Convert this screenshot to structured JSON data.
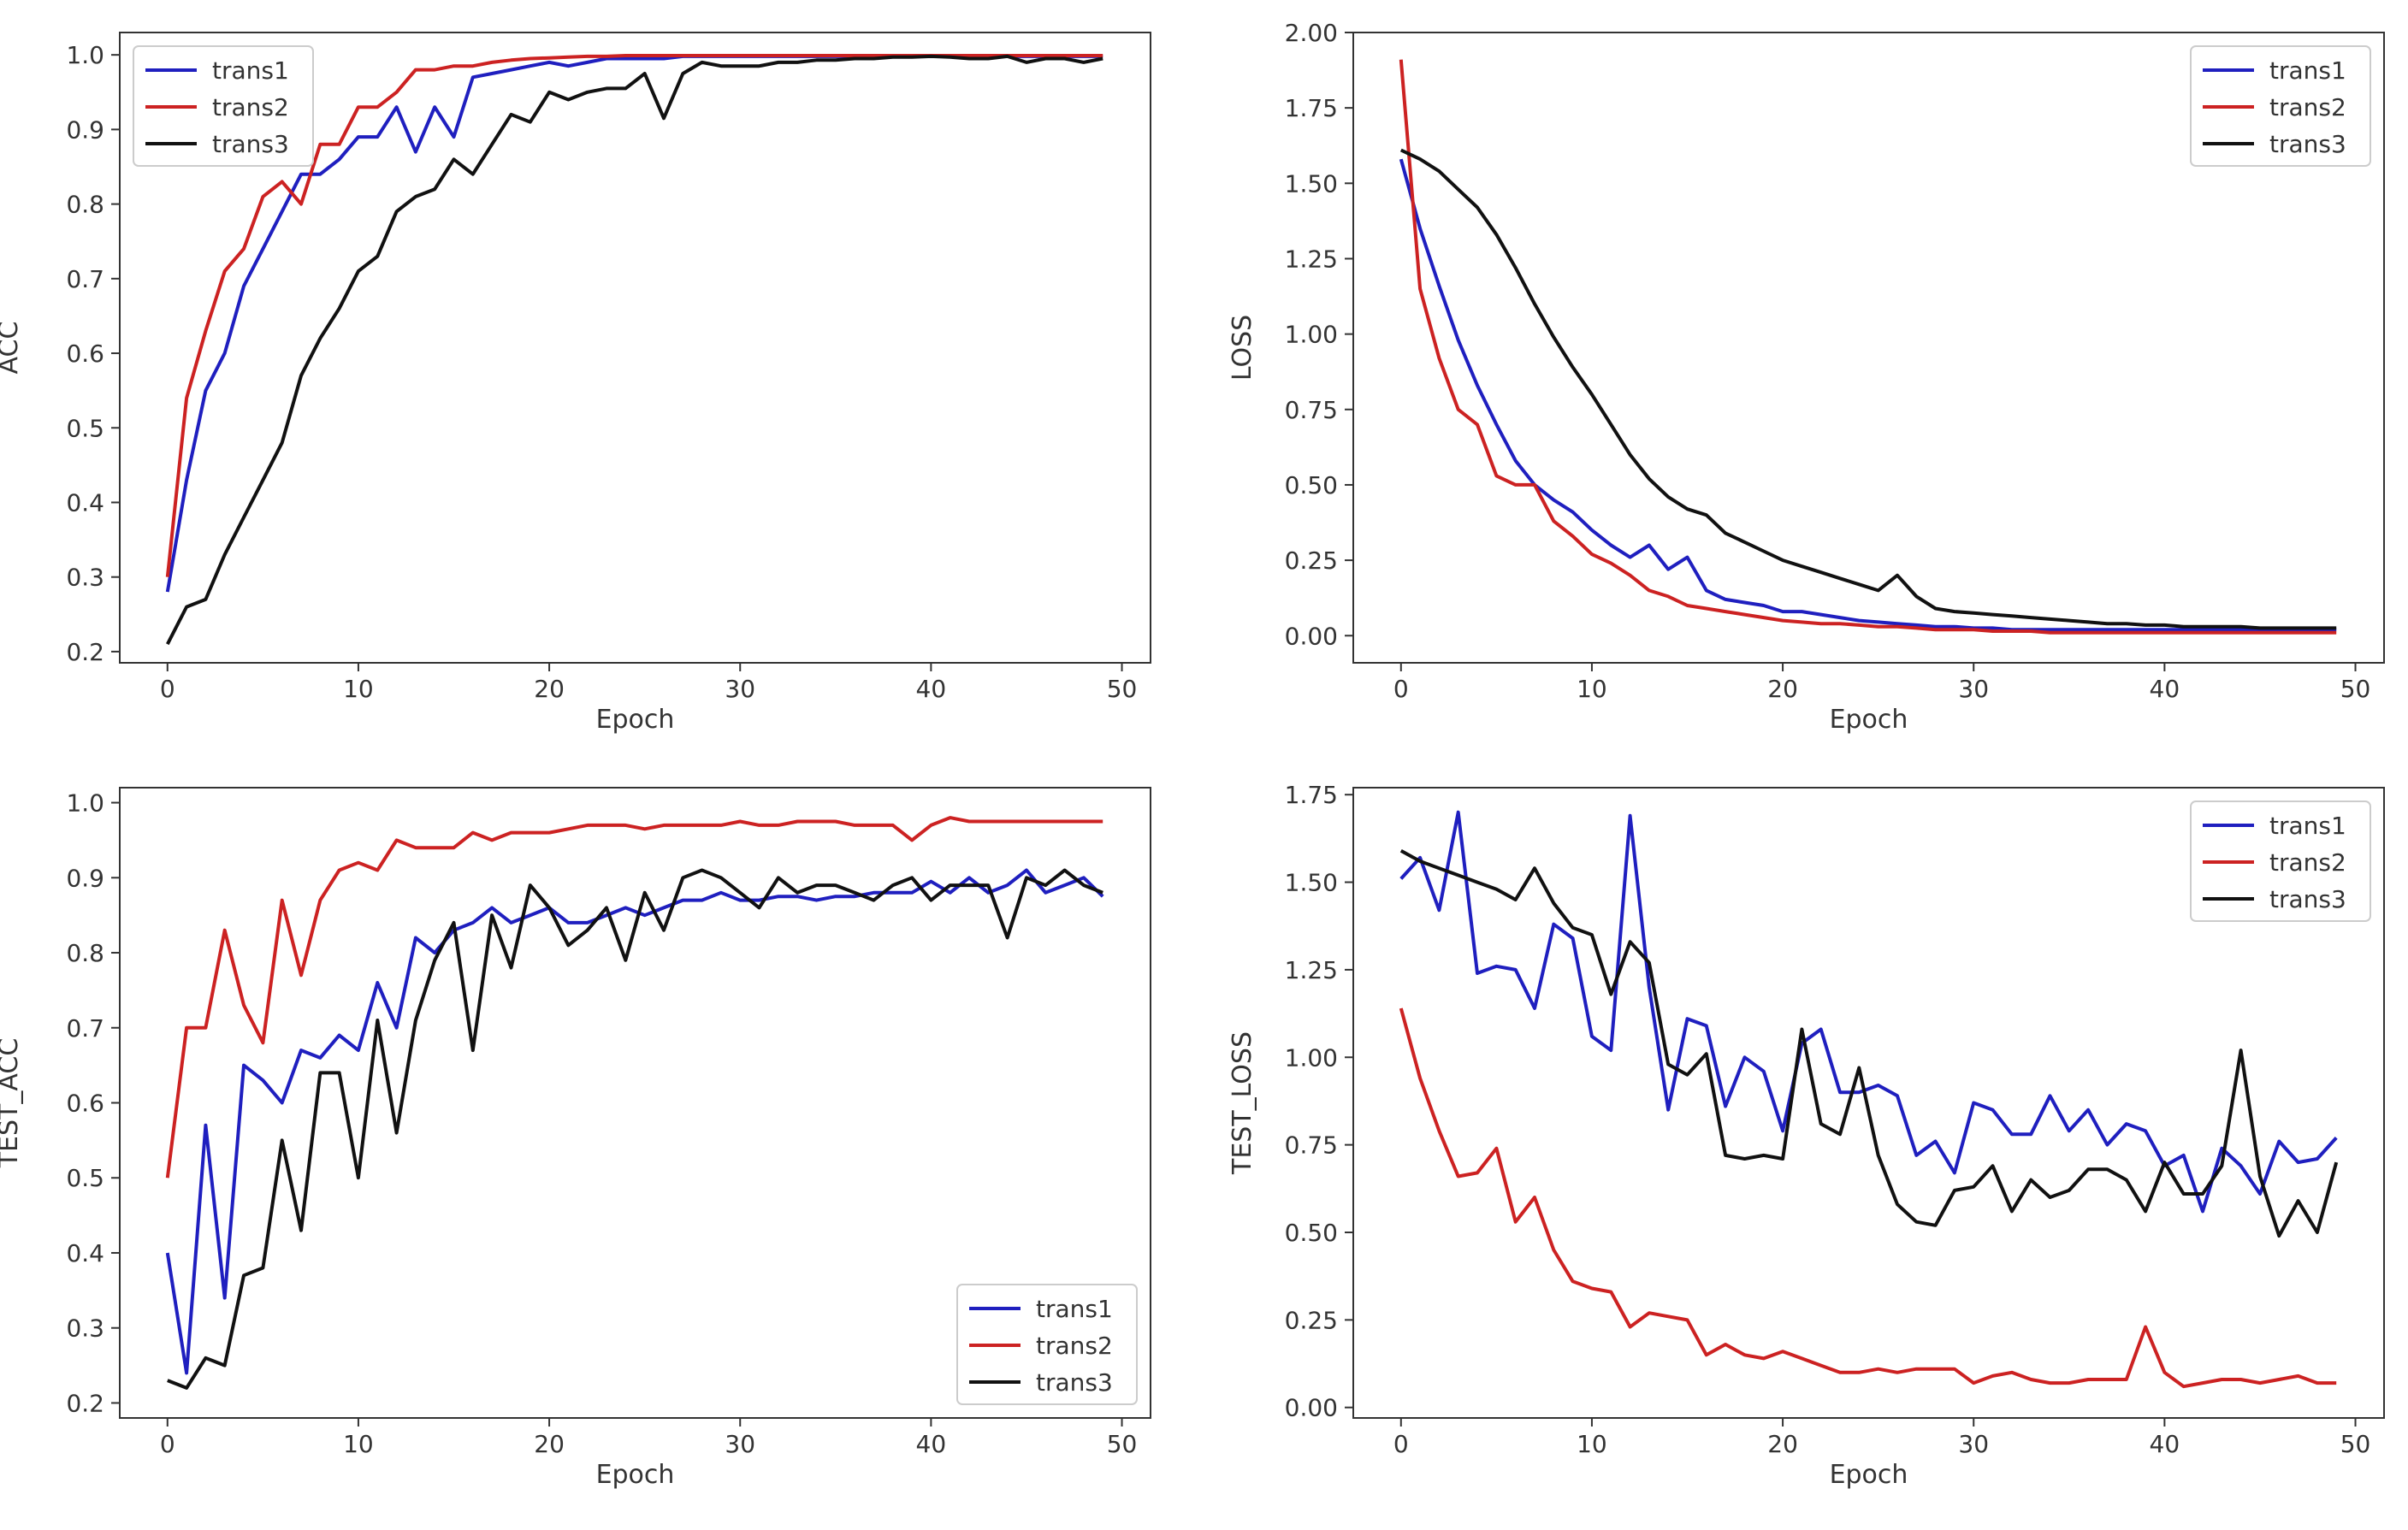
{
  "colors": {
    "trans1": "#1f1fbf",
    "trans2": "#cc2222",
    "trans3": "#111111"
  },
  "chart_data": [
    {
      "type": "line",
      "xlabel": "Epoch",
      "ylabel": "ACC",
      "xlim": [
        -2.5,
        51.5
      ],
      "ylim": [
        0.185,
        1.03
      ],
      "xticks": [
        "0",
        "10",
        "20",
        "30",
        "40",
        "50"
      ],
      "yticks": [
        "0.2",
        "0.3",
        "0.4",
        "0.5",
        "0.6",
        "0.7",
        "0.8",
        "0.9",
        "1.0"
      ],
      "legend_position": "top-left",
      "series": [
        {
          "name": "trans1",
          "values": [
            0.28,
            0.43,
            0.55,
            0.6,
            0.69,
            0.74,
            0.79,
            0.84,
            0.84,
            0.86,
            0.89,
            0.89,
            0.93,
            0.87,
            0.93,
            0.89,
            0.97,
            0.975,
            0.98,
            0.985,
            0.99,
            0.985,
            0.99,
            0.995,
            0.995,
            0.995,
            0.995,
            0.998,
            0.998,
            0.998,
            0.998,
            0.998,
            0.998,
            0.998,
            0.998,
            0.998,
            0.998,
            0.998,
            0.998,
            0.998,
            0.998,
            0.998,
            0.998,
            0.998,
            0.998,
            0.998,
            0.998,
            0.998,
            0.998,
            0.998
          ]
        },
        {
          "name": "trans2",
          "values": [
            0.3,
            0.54,
            0.63,
            0.71,
            0.74,
            0.81,
            0.83,
            0.8,
            0.88,
            0.88,
            0.93,
            0.93,
            0.95,
            0.98,
            0.98,
            0.985,
            0.985,
            0.99,
            0.993,
            0.995,
            0.996,
            0.997,
            0.998,
            0.998,
            0.999,
            0.999,
            0.999,
            0.999,
            0.999,
            0.999,
            0.999,
            0.999,
            0.999,
            0.999,
            0.999,
            0.999,
            0.999,
            0.999,
            0.999,
            0.999,
            0.999,
            0.999,
            0.999,
            0.999,
            0.999,
            0.999,
            0.999,
            0.999,
            0.999,
            0.999
          ]
        },
        {
          "name": "trans3",
          "values": [
            0.21,
            0.26,
            0.27,
            0.33,
            0.38,
            0.43,
            0.48,
            0.57,
            0.62,
            0.66,
            0.71,
            0.73,
            0.79,
            0.81,
            0.82,
            0.86,
            0.84,
            0.88,
            0.92,
            0.91,
            0.95,
            0.94,
            0.95,
            0.955,
            0.955,
            0.975,
            0.915,
            0.975,
            0.99,
            0.985,
            0.985,
            0.985,
            0.99,
            0.99,
            0.993,
            0.993,
            0.995,
            0.995,
            0.997,
            0.997,
            0.998,
            0.997,
            0.995,
            0.995,
            0.998,
            0.99,
            0.995,
            0.995,
            0.99,
            0.995
          ]
        }
      ]
    },
    {
      "type": "line",
      "xlabel": "Epoch",
      "ylabel": "LOSS",
      "xlim": [
        -2.5,
        51.5
      ],
      "ylim": [
        -0.09,
        2.0
      ],
      "xticks": [
        "0",
        "10",
        "20",
        "30",
        "40",
        "50"
      ],
      "yticks": [
        "0.00",
        "0.25",
        "0.50",
        "0.75",
        "1.00",
        "1.25",
        "1.50",
        "1.75",
        "2.00"
      ],
      "legend_position": "top-right",
      "series": [
        {
          "name": "trans1",
          "values": [
            1.58,
            1.35,
            1.16,
            0.98,
            0.83,
            0.7,
            0.58,
            0.5,
            0.45,
            0.41,
            0.35,
            0.3,
            0.26,
            0.3,
            0.22,
            0.26,
            0.15,
            0.12,
            0.11,
            0.1,
            0.08,
            0.08,
            0.07,
            0.06,
            0.05,
            0.045,
            0.04,
            0.035,
            0.03,
            0.03,
            0.025,
            0.025,
            0.02,
            0.02,
            0.02,
            0.02,
            0.02,
            0.02,
            0.02,
            0.02,
            0.02,
            0.02,
            0.02,
            0.02,
            0.02,
            0.02,
            0.02,
            0.02,
            0.02,
            0.02
          ]
        },
        {
          "name": "trans2",
          "values": [
            1.91,
            1.15,
            0.92,
            0.75,
            0.7,
            0.53,
            0.5,
            0.5,
            0.38,
            0.33,
            0.27,
            0.24,
            0.2,
            0.15,
            0.13,
            0.1,
            0.09,
            0.08,
            0.07,
            0.06,
            0.05,
            0.045,
            0.04,
            0.04,
            0.035,
            0.03,
            0.03,
            0.025,
            0.02,
            0.02,
            0.02,
            0.015,
            0.015,
            0.015,
            0.01,
            0.01,
            0.01,
            0.01,
            0.01,
            0.01,
            0.01,
            0.01,
            0.01,
            0.01,
            0.01,
            0.01,
            0.01,
            0.01,
            0.01,
            0.01
          ]
        },
        {
          "name": "trans3",
          "values": [
            1.61,
            1.58,
            1.54,
            1.48,
            1.42,
            1.33,
            1.22,
            1.1,
            0.99,
            0.89,
            0.8,
            0.7,
            0.6,
            0.52,
            0.46,
            0.42,
            0.4,
            0.34,
            0.31,
            0.28,
            0.25,
            0.23,
            0.21,
            0.19,
            0.17,
            0.15,
            0.2,
            0.13,
            0.09,
            0.08,
            0.075,
            0.07,
            0.065,
            0.06,
            0.055,
            0.05,
            0.045,
            0.04,
            0.04,
            0.035,
            0.035,
            0.03,
            0.03,
            0.03,
            0.03,
            0.025,
            0.025,
            0.025,
            0.025,
            0.025
          ]
        }
      ]
    },
    {
      "type": "line",
      "xlabel": "Epoch",
      "ylabel": "TEST_ACC",
      "xlim": [
        -2.5,
        51.5
      ],
      "ylim": [
        0.18,
        1.02
      ],
      "xticks": [
        "0",
        "10",
        "20",
        "30",
        "40",
        "50"
      ],
      "yticks": [
        "0.2",
        "0.3",
        "0.4",
        "0.5",
        "0.6",
        "0.7",
        "0.8",
        "0.9",
        "1.0"
      ],
      "legend_position": "bottom-right",
      "series": [
        {
          "name": "trans1",
          "values": [
            0.4,
            0.24,
            0.57,
            0.34,
            0.65,
            0.63,
            0.6,
            0.67,
            0.66,
            0.69,
            0.67,
            0.76,
            0.7,
            0.82,
            0.8,
            0.83,
            0.84,
            0.86,
            0.84,
            0.85,
            0.86,
            0.84,
            0.84,
            0.85,
            0.86,
            0.85,
            0.86,
            0.87,
            0.87,
            0.88,
            0.87,
            0.87,
            0.875,
            0.875,
            0.87,
            0.875,
            0.875,
            0.88,
            0.88,
            0.88,
            0.895,
            0.88,
            0.9,
            0.88,
            0.89,
            0.91,
            0.88,
            0.89,
            0.9,
            0.875
          ]
        },
        {
          "name": "trans2",
          "values": [
            0.5,
            0.7,
            0.7,
            0.83,
            0.73,
            0.68,
            0.87,
            0.77,
            0.87,
            0.91,
            0.92,
            0.91,
            0.95,
            0.94,
            0.94,
            0.94,
            0.96,
            0.95,
            0.96,
            0.96,
            0.96,
            0.965,
            0.97,
            0.97,
            0.97,
            0.965,
            0.97,
            0.97,
            0.97,
            0.97,
            0.975,
            0.97,
            0.97,
            0.975,
            0.975,
            0.975,
            0.97,
            0.97,
            0.97,
            0.95,
            0.97,
            0.98,
            0.975,
            0.975,
            0.975,
            0.975,
            0.975,
            0.975,
            0.975,
            0.975
          ]
        },
        {
          "name": "trans3",
          "values": [
            0.23,
            0.22,
            0.26,
            0.25,
            0.37,
            0.38,
            0.55,
            0.43,
            0.64,
            0.64,
            0.5,
            0.71,
            0.56,
            0.71,
            0.79,
            0.84,
            0.67,
            0.85,
            0.78,
            0.89,
            0.86,
            0.81,
            0.83,
            0.86,
            0.79,
            0.88,
            0.83,
            0.9,
            0.91,
            0.9,
            0.88,
            0.86,
            0.9,
            0.88,
            0.89,
            0.89,
            0.88,
            0.87,
            0.89,
            0.9,
            0.87,
            0.89,
            0.89,
            0.89,
            0.82,
            0.9,
            0.89,
            0.91,
            0.89,
            0.88
          ]
        }
      ]
    },
    {
      "type": "line",
      "xlabel": "Epoch",
      "ylabel": "TEST_LOSS",
      "xlim": [
        -2.5,
        51.5
      ],
      "ylim": [
        -0.03,
        1.77
      ],
      "xticks": [
        "0",
        "10",
        "20",
        "30",
        "40",
        "50"
      ],
      "yticks": [
        "0.00",
        "0.25",
        "0.50",
        "0.75",
        "1.00",
        "1.25",
        "1.50",
        "1.75"
      ],
      "legend_position": "top-right",
      "series": [
        {
          "name": "trans1",
          "values": [
            1.51,
            1.57,
            1.42,
            1.7,
            1.24,
            1.26,
            1.25,
            1.14,
            1.38,
            1.34,
            1.06,
            1.02,
            1.69,
            1.2,
            0.85,
            1.11,
            1.09,
            0.86,
            1.0,
            0.96,
            0.79,
            1.04,
            1.08,
            0.9,
            0.9,
            0.92,
            0.89,
            0.72,
            0.76,
            0.67,
            0.87,
            0.85,
            0.78,
            0.78,
            0.89,
            0.79,
            0.85,
            0.75,
            0.81,
            0.79,
            0.69,
            0.72,
            0.56,
            0.74,
            0.69,
            0.61,
            0.76,
            0.7,
            0.71,
            0.77
          ]
        },
        {
          "name": "trans2",
          "values": [
            1.14,
            0.94,
            0.79,
            0.66,
            0.67,
            0.74,
            0.53,
            0.6,
            0.45,
            0.36,
            0.34,
            0.33,
            0.23,
            0.27,
            0.26,
            0.25,
            0.15,
            0.18,
            0.15,
            0.14,
            0.16,
            0.14,
            0.12,
            0.1,
            0.1,
            0.11,
            0.1,
            0.11,
            0.11,
            0.11,
            0.07,
            0.09,
            0.1,
            0.08,
            0.07,
            0.07,
            0.08,
            0.08,
            0.08,
            0.23,
            0.1,
            0.06,
            0.07,
            0.08,
            0.08,
            0.07,
            0.08,
            0.09,
            0.07,
            0.07
          ]
        },
        {
          "name": "trans3",
          "values": [
            1.59,
            1.56,
            1.54,
            1.52,
            1.5,
            1.48,
            1.45,
            1.54,
            1.44,
            1.37,
            1.35,
            1.18,
            1.33,
            1.27,
            0.98,
            0.95,
            1.01,
            0.72,
            0.71,
            0.72,
            0.71,
            1.08,
            0.81,
            0.78,
            0.97,
            0.72,
            0.58,
            0.53,
            0.52,
            0.62,
            0.63,
            0.69,
            0.56,
            0.65,
            0.6,
            0.62,
            0.68,
            0.68,
            0.65,
            0.56,
            0.7,
            0.61,
            0.61,
            0.69,
            1.02,
            0.66,
            0.49,
            0.59,
            0.5,
            0.7
          ]
        }
      ]
    }
  ]
}
